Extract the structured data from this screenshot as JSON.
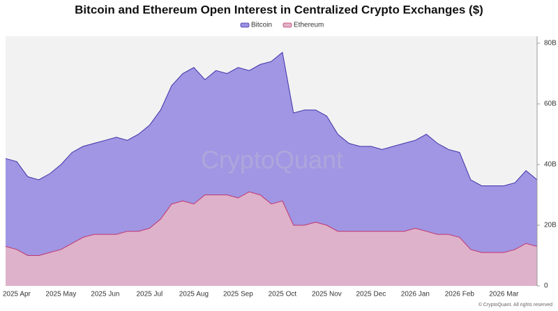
{
  "chart_data": {
    "type": "area",
    "title": "Bitcoin and Ethereum Open Interest in Centralized Crypto Exchanges ($)",
    "watermark": "CryptoQuant",
    "footer": "© CryptoQuant. All rights reserved",
    "categories": [
      null,
      "2025 Apr",
      null,
      null,
      null,
      "2025 May",
      null,
      null,
      null,
      "2025 Jun",
      null,
      null,
      null,
      "2025 Jul",
      null,
      null,
      null,
      "2025 Aug",
      null,
      null,
      null,
      "2025 Sep",
      null,
      null,
      null,
      "2025 Oct",
      null,
      null,
      null,
      "2025 Nov",
      null,
      null,
      null,
      "2025 Dec",
      null,
      null,
      null,
      "2026 Jan",
      null,
      null,
      null,
      "2026 Feb",
      null,
      null,
      null,
      "2026 Mar",
      null,
      null,
      null
    ],
    "series": [
      {
        "name": "Bitcoin",
        "color": "#9b90e2",
        "line_color": "#3d32a8",
        "values": [
          42000000000,
          41000000000,
          36000000000,
          35000000000,
          37000000000,
          40000000000,
          44000000000,
          46000000000,
          47000000000,
          48000000000,
          49000000000,
          48000000000,
          50000000000,
          53000000000,
          58000000000,
          66000000000,
          70000000000,
          72000000000,
          68000000000,
          71000000000,
          70000000000,
          72000000000,
          71000000000,
          73000000000,
          74000000000,
          77000000000,
          57000000000,
          58000000000,
          58000000000,
          56000000000,
          50000000000,
          47000000000,
          46000000000,
          46000000000,
          45000000000,
          46000000000,
          47000000000,
          48000000000,
          50000000000,
          47000000000,
          45000000000,
          44000000000,
          35000000000,
          33000000000,
          33000000000,
          33000000000,
          34000000000,
          38000000000,
          35000000000
        ]
      },
      {
        "name": "Ethereum",
        "color": "#e2b3c8",
        "line_color": "#c2356f",
        "values": [
          13000000000,
          12000000000,
          10000000000,
          10000000000,
          11000000000,
          12000000000,
          14000000000,
          16000000000,
          17000000000,
          17000000000,
          17000000000,
          18000000000,
          18000000000,
          19000000000,
          22000000000,
          27000000000,
          28000000000,
          27000000000,
          30000000000,
          30000000000,
          30000000000,
          29000000000,
          31000000000,
          30000000000,
          27000000000,
          28000000000,
          20000000000,
          20000000000,
          21000000000,
          20000000000,
          18000000000,
          18000000000,
          18000000000,
          18000000000,
          18000000000,
          18000000000,
          18000000000,
          19000000000,
          18000000000,
          17000000000,
          17000000000,
          16000000000,
          12000000000,
          11000000000,
          11000000000,
          11000000000,
          12000000000,
          14000000000,
          13000000000
        ]
      }
    ],
    "ylim": [
      0,
      80000000000
    ],
    "yticks": [
      0,
      {
        "value": 20000000000,
        "label": "20B"
      },
      {
        "value": 40000000000,
        "label": "40B"
      },
      {
        "value": 60000000000,
        "label": "60B"
      },
      {
        "value": 80000000000,
        "label": "80B"
      }
    ],
    "legend": "top"
  }
}
